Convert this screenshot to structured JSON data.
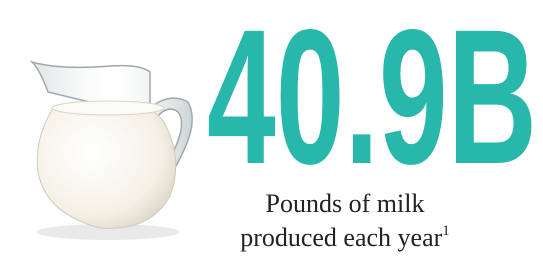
{
  "stat": {
    "figure": "40.9B",
    "caption": [
      "Pounds of milk",
      "produced each year"
    ],
    "footnote": "1"
  }
}
